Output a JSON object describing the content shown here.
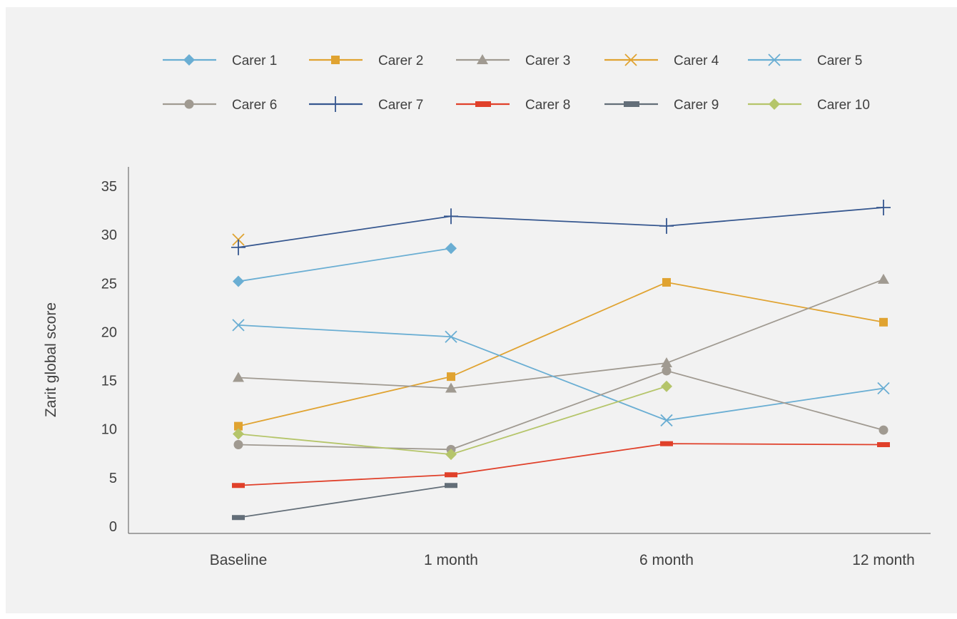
{
  "chart_data": {
    "type": "line",
    "ylabel": "Zarit global score",
    "categories": [
      "Baseline",
      "1 month",
      "6 month",
      "12 month"
    ],
    "ylim": [
      0,
      35
    ],
    "yticks": [
      0,
      5,
      10,
      15,
      20,
      25,
      30,
      35
    ],
    "legend_position": "top",
    "grid": false,
    "series": [
      {
        "name": "Carer 1",
        "color": "#6aaed3",
        "marker": "diamond",
        "values": [
          25.2,
          28.6,
          null,
          null
        ]
      },
      {
        "name": "Carer 2",
        "color": "#e0a331",
        "marker": "square",
        "values": [
          10.3,
          15.4,
          25.1,
          21.0
        ]
      },
      {
        "name": "Carer 3",
        "color": "#a09a91",
        "marker": "triangle",
        "values": [
          15.3,
          14.2,
          16.8,
          25.4
        ]
      },
      {
        "name": "Carer 4",
        "color": "#e0a331",
        "marker": "x",
        "values": [
          29.5,
          null,
          null,
          null
        ]
      },
      {
        "name": "Carer 5",
        "color": "#6aaed3",
        "marker": "x",
        "values": [
          20.7,
          19.5,
          10.9,
          14.2
        ]
      },
      {
        "name": "Carer 6",
        "color": "#a09a91",
        "marker": "circle",
        "values": [
          8.4,
          7.9,
          16.0,
          9.9
        ]
      },
      {
        "name": "Carer 7",
        "color": "#36578f",
        "marker": "plus",
        "values": [
          28.7,
          31.9,
          30.9,
          32.8
        ]
      },
      {
        "name": "Carer 8",
        "color": "#e0402a",
        "marker": "dash",
        "values": [
          4.2,
          5.3,
          8.5,
          8.4
        ]
      },
      {
        "name": "Carer 9",
        "color": "#636e78",
        "marker": "dash",
        "values": [
          0.9,
          4.2,
          null,
          null
        ]
      },
      {
        "name": "Carer 10",
        "color": "#b5c56a",
        "marker": "diamond",
        "values": [
          9.5,
          7.4,
          14.4,
          null
        ]
      }
    ]
  }
}
